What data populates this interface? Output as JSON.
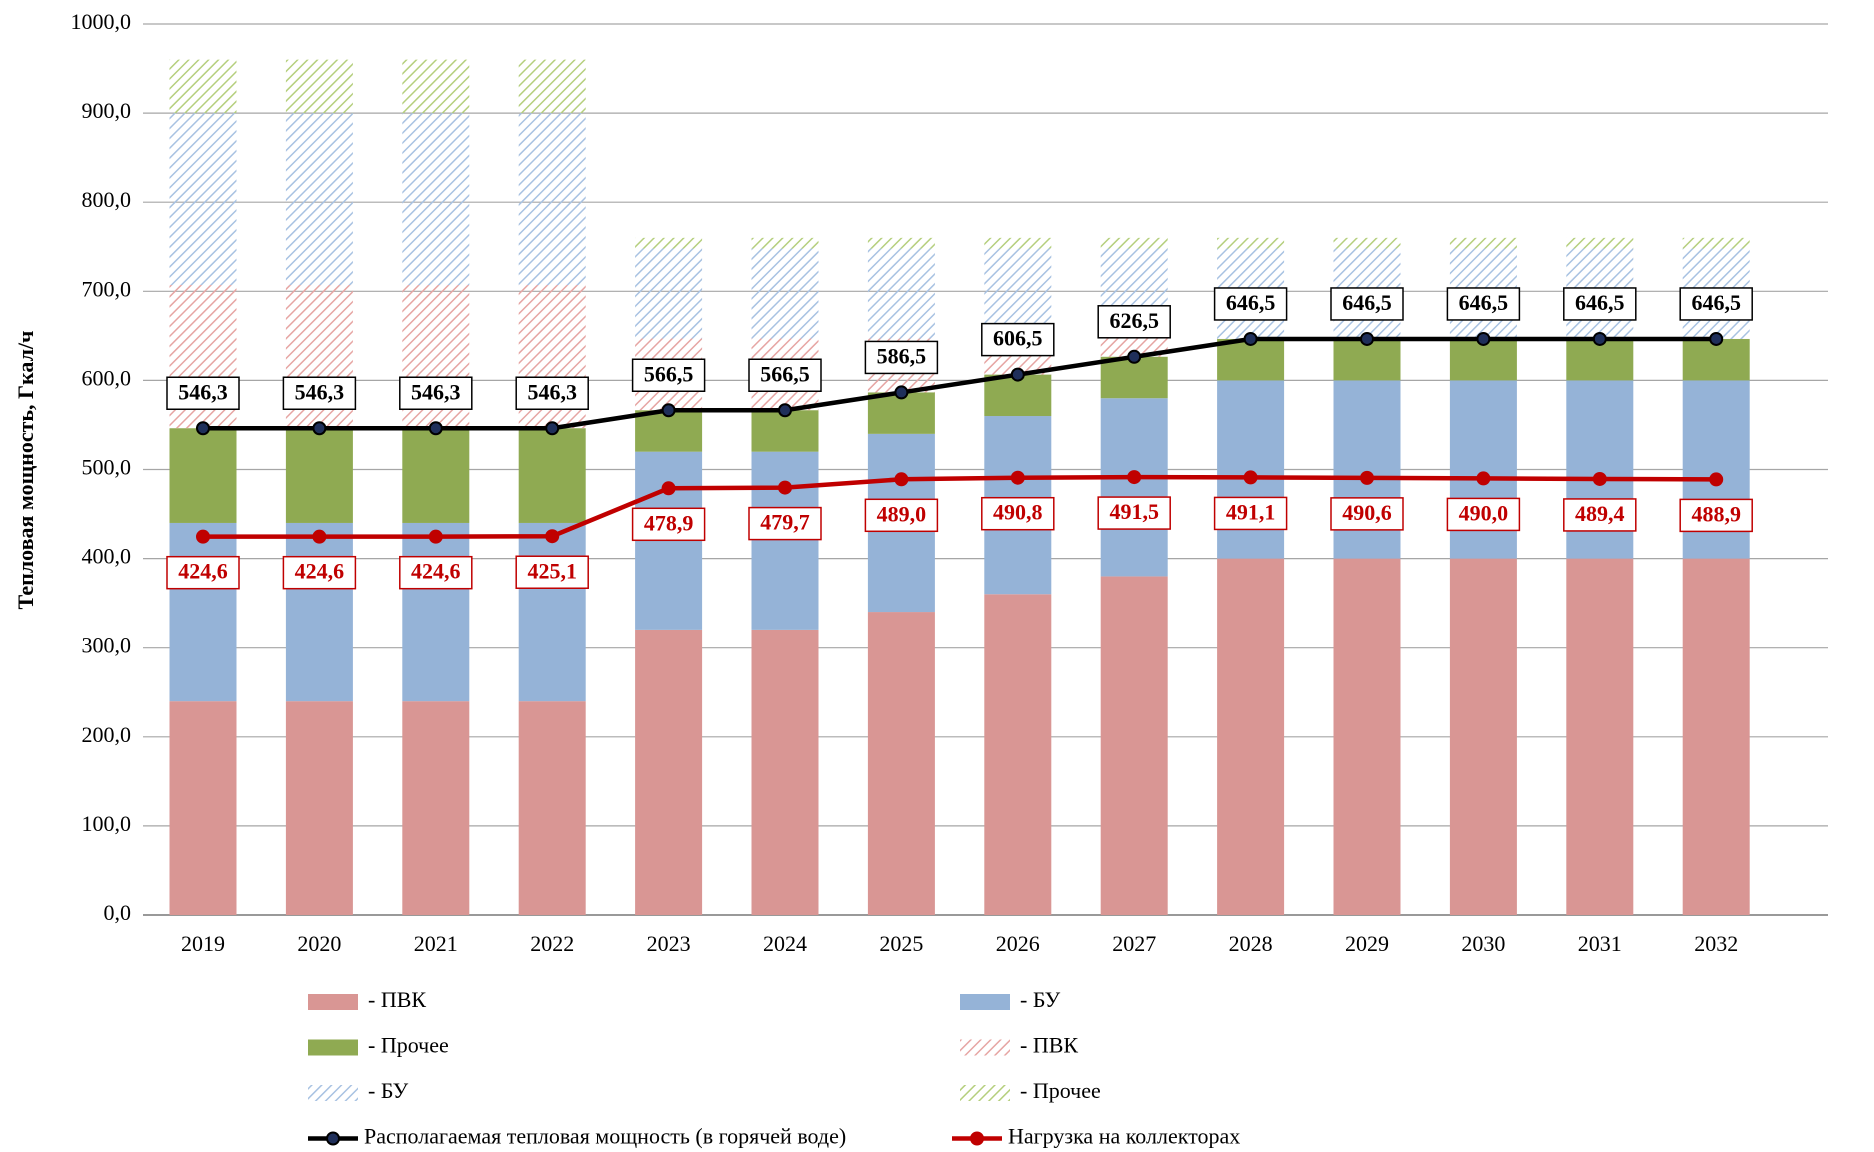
{
  "chart_data": {
    "type": "bar",
    "stacked": true,
    "y_label": "Тепловая мощность, Гкал/ч",
    "categories": [
      "2019",
      "2020",
      "2021",
      "2022",
      "2023",
      "2024",
      "2025",
      "2026",
      "2027",
      "2028",
      "2029",
      "2030",
      "2031",
      "2032"
    ],
    "ylim": [
      0,
      1000
    ],
    "yticks": [
      {
        "value": 0,
        "label": "0,0"
      },
      {
        "value": 100,
        "label": "100,0"
      },
      {
        "value": 200,
        "label": "200,0"
      },
      {
        "value": 300,
        "label": "300,0"
      },
      {
        "value": 400,
        "label": "400,0"
      },
      {
        "value": 500,
        "label": "500,0"
      },
      {
        "value": 600,
        "label": "600,0"
      },
      {
        "value": 700,
        "label": "700,0"
      },
      {
        "value": 800,
        "label": "800,0"
      },
      {
        "value": 900,
        "label": "900,0"
      },
      {
        "value": 1000,
        "label": "1000,0"
      }
    ],
    "grid": true,
    "series": [
      {
        "name": "- ПВК",
        "color": "#d99694",
        "values": [
          240,
          240,
          240,
          240,
          320,
          320,
          340,
          360,
          380,
          400,
          400,
          400,
          400,
          400
        ]
      },
      {
        "name": "- БУ",
        "color": "#95b3d7",
        "values": [
          200,
          200,
          200,
          200,
          200,
          200,
          200,
          200,
          200,
          200,
          200,
          200,
          200,
          200
        ]
      },
      {
        "name": "- Прочее",
        "color": "#8faa52",
        "values": [
          106.3,
          106.3,
          106.3,
          106.3,
          46.5,
          46.5,
          46.5,
          46.5,
          46.5,
          46.5,
          46.5,
          46.5,
          46.5,
          46.5
        ]
      },
      {
        "name": "- ПВК",
        "color": "#e6a5a3",
        "pattern": "hatch",
        "values": [
          160.7,
          160.7,
          160.7,
          160.7,
          80.5,
          80.5,
          60.5,
          40.5,
          20.5,
          0,
          0,
          0,
          0,
          0
        ]
      },
      {
        "name": "- БУ",
        "color": "#a8c2e2",
        "pattern": "hatch",
        "values": [
          193,
          193,
          193,
          193,
          101,
          101,
          101,
          101,
          101,
          101.5,
          101.5,
          101.5,
          101.5,
          101.5
        ]
      },
      {
        "name": "- Прочее",
        "color": "#b5cf7d",
        "pattern": "hatch",
        "values": [
          60,
          60,
          60,
          60,
          12,
          12,
          12,
          12,
          12,
          12,
          12,
          12,
          12,
          12
        ]
      },
      {
        "name": "Располагаемая тепловая мощность (в горячей воде)",
        "type": "line",
        "color": "#000000",
        "marker_color": "#1f2f5a",
        "label_position": "above",
        "values": [
          546.3,
          546.3,
          546.3,
          546.3,
          566.5,
          566.5,
          586.5,
          606.5,
          626.5,
          646.5,
          646.5,
          646.5,
          646.5,
          646.5
        ],
        "value_labels": [
          "546,3",
          "546,3",
          "546,3",
          "546,3",
          "566,5",
          "566,5",
          "586,5",
          "606,5",
          "626,5",
          "646,5",
          "646,5",
          "646,5",
          "646,5",
          "646,5"
        ]
      },
      {
        "name": "Нагрузка на коллекторах",
        "type": "line",
        "color": "#c00000",
        "marker_color": "#c00000",
        "label_position": "below",
        "values": [
          424.6,
          424.6,
          424.6,
          425.1,
          478.9,
          479.7,
          489.0,
          490.8,
          491.5,
          491.1,
          490.6,
          490.0,
          489.4,
          488.9
        ],
        "value_labels": [
          "424,6",
          "424,6",
          "424,6",
          "425,1",
          "478,9",
          "479,7",
          "489,0",
          "490,8",
          "491,5",
          "491,1",
          "490,6",
          "490,0",
          "489,4",
          "488,9"
        ]
      }
    ]
  }
}
